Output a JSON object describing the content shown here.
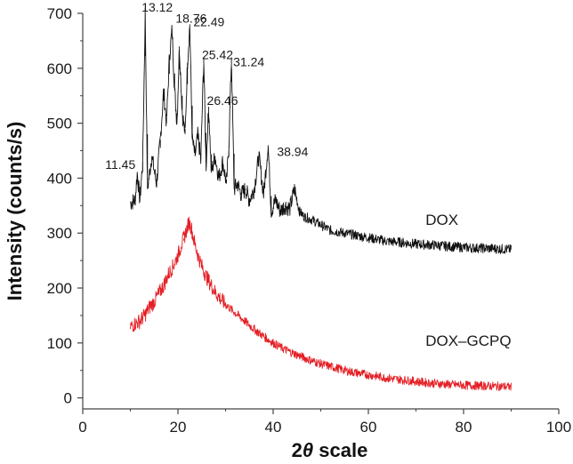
{
  "chart_data": {
    "type": "line",
    "title": "",
    "xlabel_prefix": "2",
    "xlabel_theta": "θ",
    "xlabel_suffix": " scale",
    "ylabel": "Intensity (counts/s)",
    "xlim": [
      0,
      100
    ],
    "ylim": [
      -20,
      700
    ],
    "xticks": [
      0,
      20,
      40,
      60,
      80,
      100
    ],
    "yticks": [
      0,
      100,
      200,
      300,
      400,
      500,
      600,
      700
    ],
    "xtick_labels": [
      "0",
      "20",
      "40",
      "60",
      "80",
      "100"
    ],
    "ytick_labels": [
      "0",
      "100",
      "200",
      "300",
      "400",
      "500",
      "600",
      "700"
    ],
    "grid": false,
    "series": [
      {
        "name": "DOX",
        "color": "#111111",
        "x": [
          10,
          11,
          11.45,
          12,
          12.6,
          13.12,
          13.6,
          14.5,
          15.5,
          16.3,
          17,
          17.6,
          18.2,
          18.76,
          19.3,
          19.8,
          20.3,
          20.9,
          21.5,
          22,
          22.49,
          23,
          23.6,
          24.2,
          24.8,
          25.42,
          25.9,
          26.46,
          27,
          27.8,
          28.6,
          29.4,
          30.2,
          30.7,
          31.24,
          31.8,
          32.5,
          33.3,
          34.2,
          35,
          36,
          37,
          38,
          38.94,
          39.6,
          40.5,
          41.5,
          42.5,
          43.5,
          44.5,
          45.5,
          46.5,
          48,
          50,
          52,
          55,
          58,
          61,
          64,
          67,
          70,
          74,
          78,
          82,
          86,
          90
        ],
        "y": [
          355,
          360,
          410,
          360,
          430,
          700,
          380,
          440,
          390,
          470,
          560,
          500,
          620,
          670,
          560,
          500,
          640,
          520,
          480,
          610,
          680,
          470,
          440,
          480,
          430,
          620,
          420,
          530,
          410,
          440,
          400,
          430,
          390,
          460,
          620,
          380,
          390,
          370,
          380,
          360,
          380,
          440,
          370,
          460,
          340,
          360,
          340,
          350,
          345,
          380,
          340,
          330,
          325,
          315,
          305,
          300,
          295,
          290,
          285,
          283,
          280,
          278,
          275,
          273,
          272,
          270
        ]
      },
      {
        "name": "DOX–GCPQ",
        "color": "#e31e24",
        "x": [
          10,
          11,
          12,
          13,
          14,
          15,
          16,
          17,
          18,
          19,
          20,
          20.6,
          21.2,
          21.8,
          22.3,
          22.8,
          23.4,
          24,
          25,
          26,
          27,
          28,
          30,
          32,
          34,
          36,
          38,
          40,
          42,
          44,
          46,
          48,
          50,
          53,
          56,
          60,
          64,
          68,
          72,
          76,
          80,
          84,
          88,
          90
        ],
        "y": [
          130,
          135,
          140,
          150,
          165,
          175,
          190,
          205,
          225,
          240,
          260,
          275,
          290,
          305,
          320,
          310,
          285,
          265,
          240,
          220,
          205,
          190,
          170,
          155,
          140,
          125,
          112,
          100,
          90,
          82,
          75,
          68,
          62,
          55,
          48,
          42,
          36,
          32,
          28,
          25,
          23,
          22,
          21,
          20
        ]
      }
    ],
    "annotations": [
      {
        "text": "13.12",
        "x": 13.12,
        "y": 700
      },
      {
        "text": "18.76",
        "x": 18.76,
        "y": 670
      },
      {
        "text": "22.49",
        "x": 22.49,
        "y": 680
      },
      {
        "text": "25.42",
        "x": 25.42,
        "y": 620
      },
      {
        "text": "31.24",
        "x": 31.24,
        "y": 620
      },
      {
        "text": "26.46",
        "x": 26.46,
        "y": 530
      },
      {
        "text": "11.45",
        "x": 11.45,
        "y": 410
      },
      {
        "text": "38.94",
        "x": 38.94,
        "y": 460
      }
    ],
    "series_labels": [
      {
        "text": "DOX",
        "x": 72,
        "y": 315
      },
      {
        "text": "DOX–GCPQ",
        "x": 72,
        "y": 95
      }
    ]
  }
}
